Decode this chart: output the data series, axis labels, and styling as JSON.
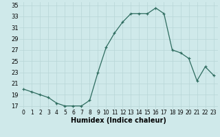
{
  "x": [
    0,
    1,
    2,
    3,
    4,
    5,
    6,
    7,
    8,
    9,
    10,
    11,
    12,
    13,
    14,
    15,
    16,
    17,
    18,
    19,
    20,
    21,
    22,
    23
  ],
  "y": [
    20.0,
    19.5,
    19.0,
    18.5,
    17.5,
    17.0,
    17.0,
    17.0,
    18.0,
    23.0,
    27.5,
    30.0,
    32.0,
    33.5,
    33.5,
    33.5,
    34.5,
    33.5,
    27.0,
    26.5,
    25.5,
    21.5,
    24.0,
    22.5
  ],
  "xlabel": "Humidex (Indice chaleur)",
  "ylim_min": 16.5,
  "ylim_max": 35.5,
  "xlim_min": -0.5,
  "xlim_max": 23.5,
  "yticks": [
    17,
    19,
    21,
    23,
    25,
    27,
    29,
    31,
    33,
    35
  ],
  "xticks": [
    0,
    1,
    2,
    3,
    4,
    5,
    6,
    7,
    8,
    9,
    10,
    11,
    12,
    13,
    14,
    15,
    16,
    17,
    18,
    19,
    20,
    21,
    22,
    23
  ],
  "line_color": "#2d6b5e",
  "marker": "+",
  "bg_color": "#cfe9ea",
  "grid_color": "#b8d5d6",
  "xlabel_fontsize": 7,
  "tick_fontsize": 6,
  "linewidth": 0.9,
  "markersize": 3.0,
  "markeredgewidth": 0.9
}
